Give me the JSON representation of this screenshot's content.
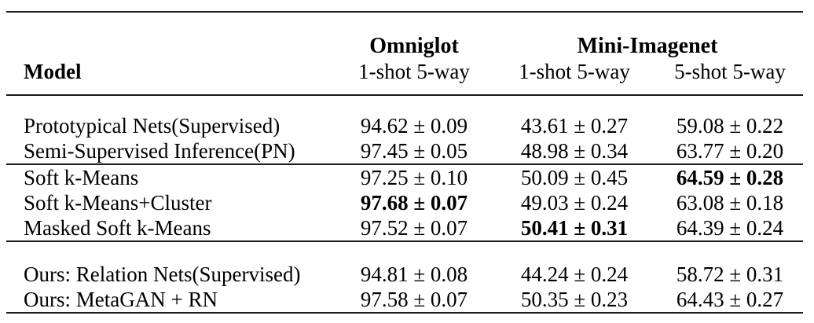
{
  "colors": {
    "background": "#ffffff",
    "text": "#000000",
    "rule": "#1c1c1c"
  },
  "table": {
    "model_header": "Model",
    "group_headers": [
      {
        "label": "Omniglot",
        "colspan": 1
      },
      {
        "label": "Mini-Imagenet",
        "colspan": 2
      }
    ],
    "subheaders": [
      "1-shot 5-way",
      "1-shot 5-way",
      "5-shot 5-way"
    ],
    "sections": [
      {
        "rows": [
          {
            "model": "Prototypical Nets(Supervised)",
            "values": [
              {
                "text": "94.62 ± 0.09",
                "bold": false
              },
              {
                "text": "43.61 ± 0.27",
                "bold": false
              },
              {
                "text": "59.08 ± 0.22",
                "bold": false
              }
            ]
          },
          {
            "model": "Semi-Supervised Inference(PN)",
            "values": [
              {
                "text": "97.45 ± 0.05",
                "bold": false
              },
              {
                "text": "48.98 ± 0.34",
                "bold": false
              },
              {
                "text": "63.77 ± 0.20",
                "bold": false
              }
            ]
          }
        ]
      },
      {
        "rows": [
          {
            "model": "Soft k-Means",
            "values": [
              {
                "text": "97.25 ± 0.10",
                "bold": false
              },
              {
                "text": "50.09 ± 0.45",
                "bold": false
              },
              {
                "text": "64.59 ± 0.28",
                "bold": true
              }
            ]
          },
          {
            "model": "Soft k-Means+Cluster",
            "values": [
              {
                "text": "97.68 ± 0.07",
                "bold": true
              },
              {
                "text": "49.03 ± 0.24",
                "bold": false
              },
              {
                "text": "63.08 ± 0.18",
                "bold": false
              }
            ]
          },
          {
            "model": "Masked Soft k-Means",
            "values": [
              {
                "text": "97.52 ± 0.07",
                "bold": false
              },
              {
                "text": "50.41 ± 0.31",
                "bold": true
              },
              {
                "text": "64.39 ± 0.24",
                "bold": false
              }
            ]
          }
        ]
      },
      {
        "rows": [
          {
            "model": "Ours: Relation Nets(Supervised)",
            "values": [
              {
                "text": "94.81 ± 0.08",
                "bold": false
              },
              {
                "text": "44.24 ± 0.24",
                "bold": false
              },
              {
                "text": "58.72 ± 0.31",
                "bold": false
              }
            ]
          },
          {
            "model": "Ours: MetaGAN + RN",
            "values": [
              {
                "text": "97.58 ± 0.07",
                "bold": false
              },
              {
                "text": "50.35 ± 0.23",
                "bold": false
              },
              {
                "text": "64.43 ± 0.27",
                "bold": false
              }
            ]
          }
        ]
      }
    ]
  }
}
